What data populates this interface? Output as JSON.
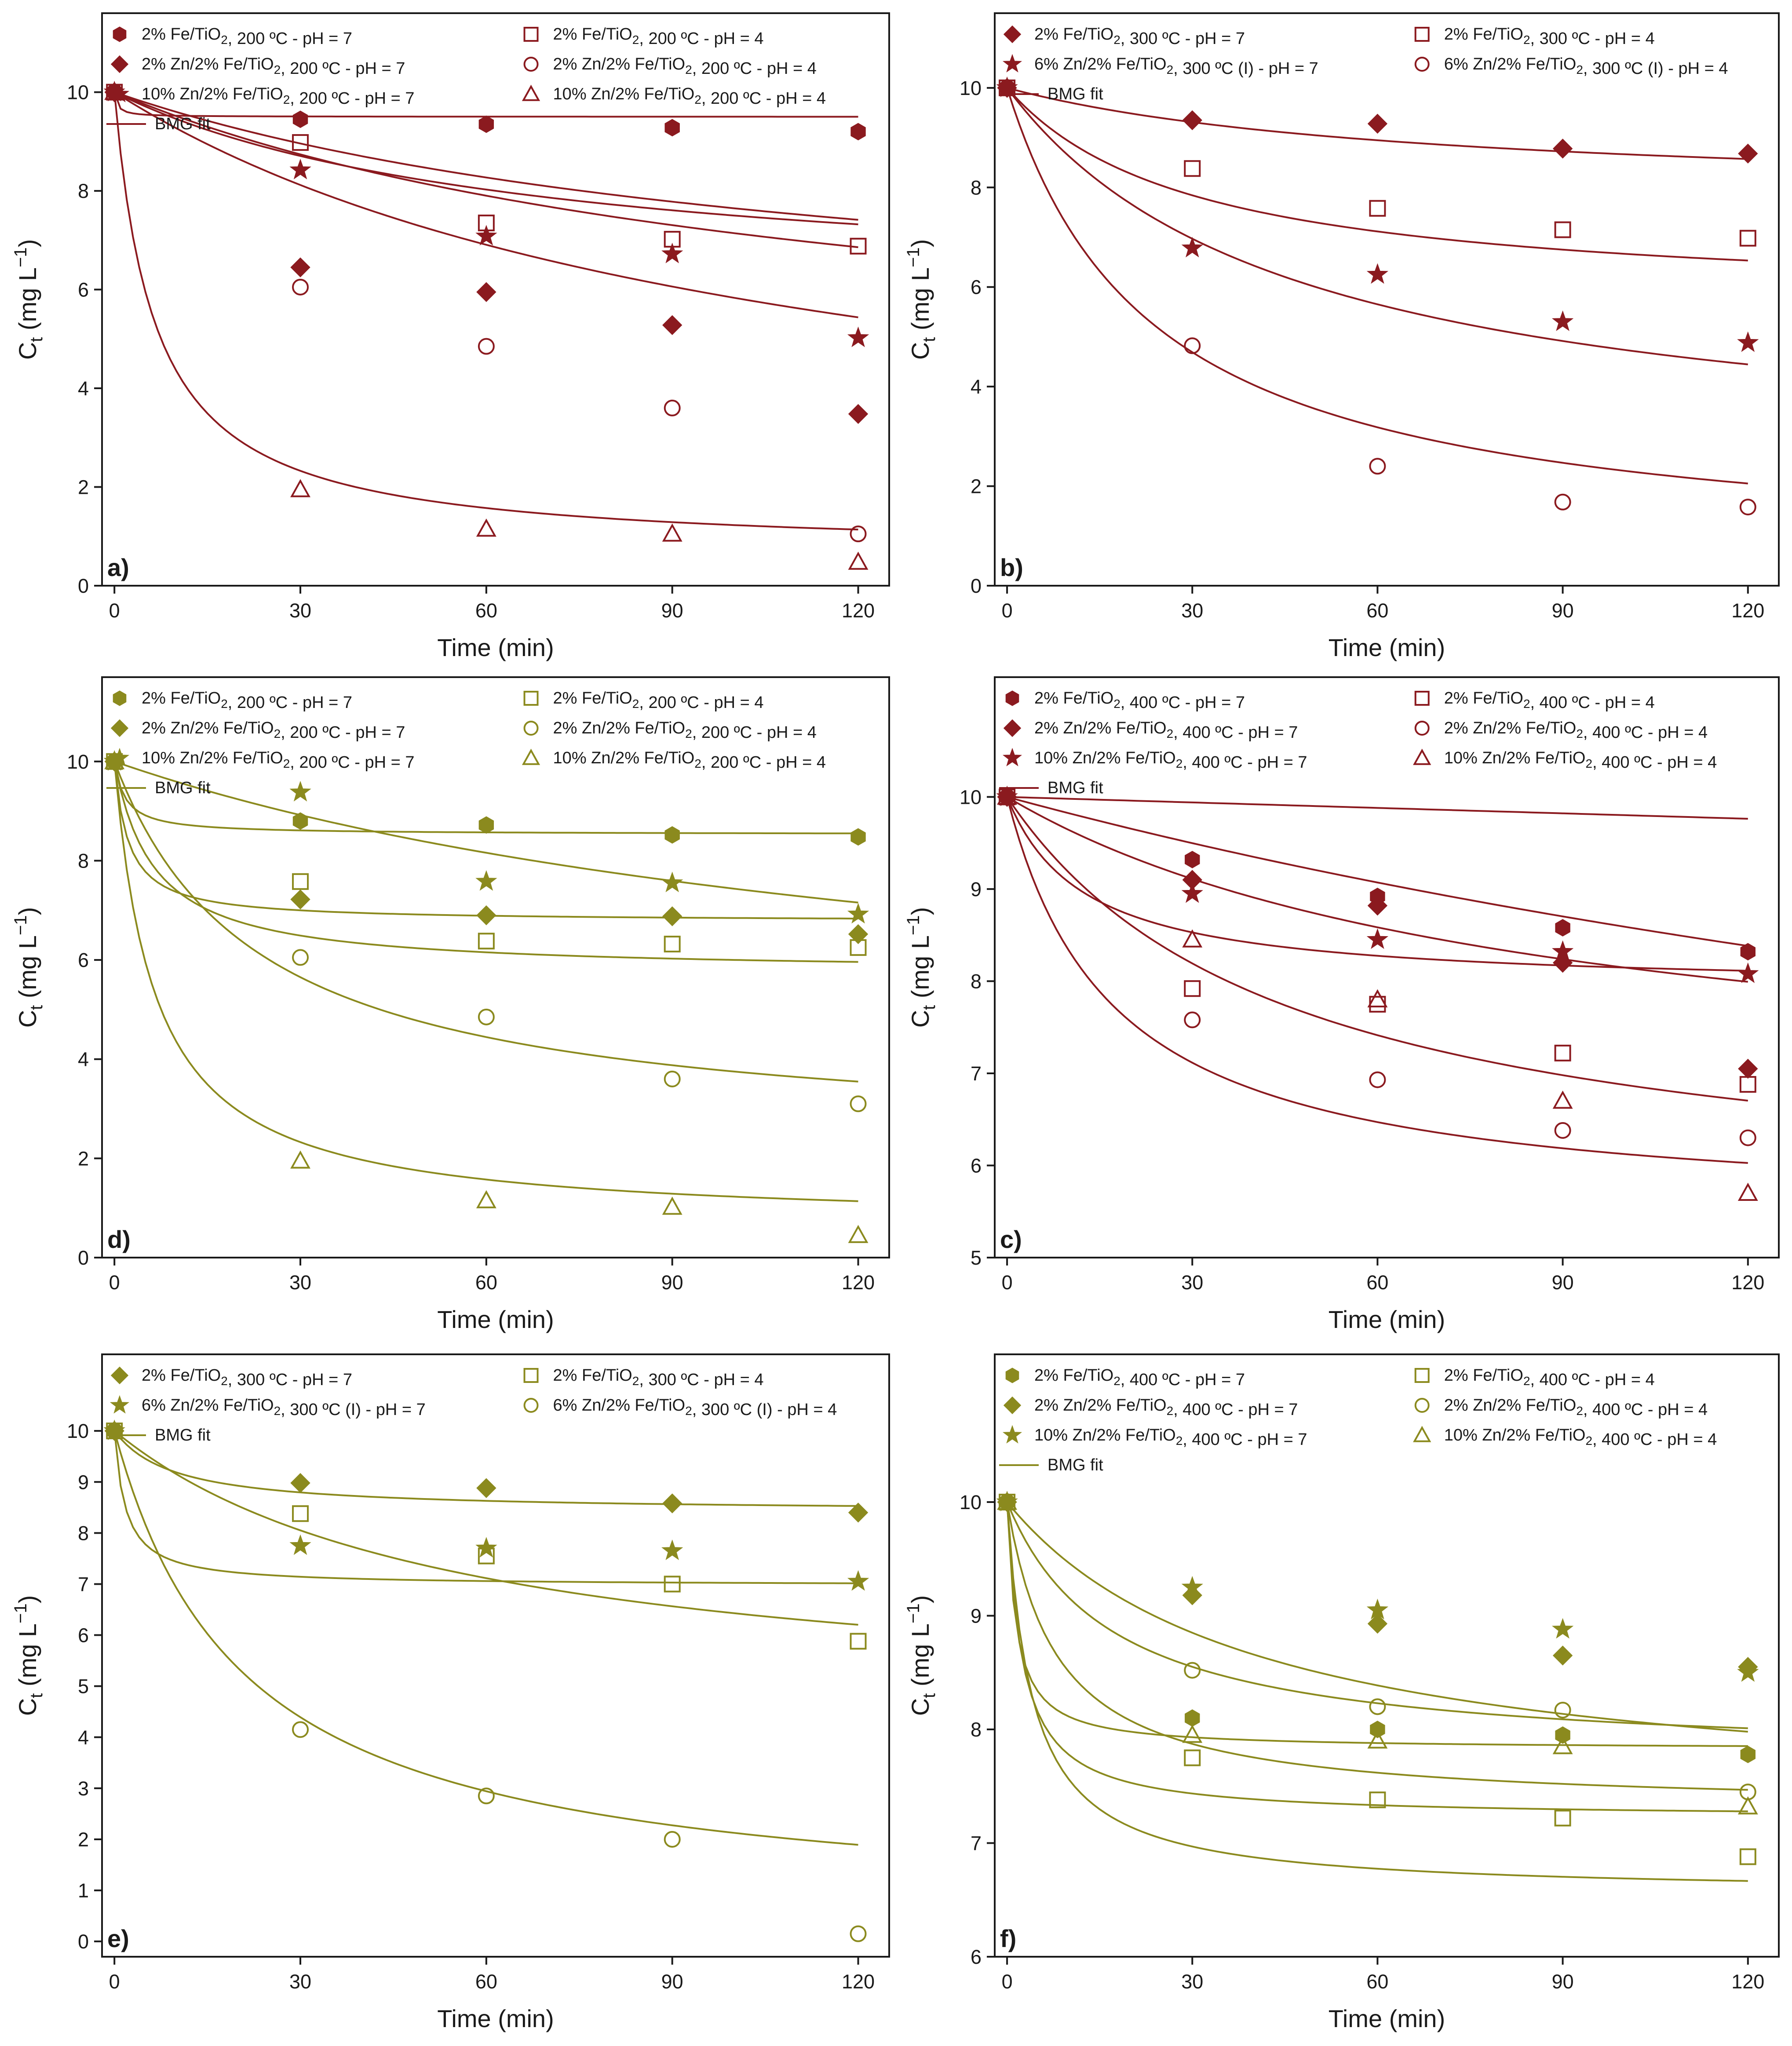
{
  "chart_data": [
    {
      "type": "scatter",
      "panel_label": "a)",
      "color": "#8b1a1f",
      "xlabel": "Time (min)",
      "ylabel": "Ct (mg L−1)",
      "xlim": [
        -2,
        125
      ],
      "ylim": [
        0,
        11.6
      ],
      "xticks": [
        0,
        30,
        60,
        90,
        120
      ],
      "yticks": [
        0,
        2,
        4,
        6,
        8,
        10
      ],
      "fit_label": "BMG fit",
      "series": [
        {
          "name": "2% Fe/TiO2, 200 ºC - pH = 7",
          "marker": "hexagon",
          "filled": true,
          "x": [
            0,
            30,
            60,
            90,
            120
          ],
          "y": [
            10,
            9.45,
            9.35,
            9.28,
            9.2
          ],
          "fit": [
            9.8,
            20
          ],
          "legend_pos": "left"
        },
        {
          "name": "2% Zn/2% Fe/TiO2, 200 ºC - pH = 7",
          "marker": "diamond",
          "filled": true,
          "x": [
            0,
            30,
            60,
            90,
            120
          ],
          "y": [
            10,
            6.45,
            5.95,
            5.28,
            3.48
          ],
          "fit": [
            190,
            1.6
          ],
          "legend_pos": "left"
        },
        {
          "name": "10% Zn/2% Fe/TiO2, 200 ºC - pH = 7",
          "marker": "star",
          "filled": true,
          "x": [
            0,
            30,
            60,
            90,
            120
          ],
          "y": [
            10,
            8.42,
            7.08,
            6.72,
            5.02
          ],
          "fit": [
            230,
            1.95
          ],
          "legend_pos": "left"
        },
        {
          "name": "2% Fe/TiO2, 200 ºC - pH = 4",
          "marker": "square",
          "filled": false,
          "x": [
            0,
            30,
            60,
            90,
            120
          ],
          "y": [
            10,
            8.98,
            7.35,
            7.02,
            6.88
          ],
          "fit": [
            160,
            2.4
          ],
          "legend_pos": "right"
        },
        {
          "name": "2% Zn/2% Fe/TiO2, 200 ºC - pH = 4",
          "marker": "circle",
          "filled": false,
          "x": [
            0,
            30,
            60,
            90,
            120
          ],
          "y": [
            10,
            6.05,
            4.85,
            3.6,
            1.05
          ],
          "fit": [
            125,
            1.15
          ],
          "legend_pos": "right"
        },
        {
          "name": "10% Zn/2% Fe/TiO2, 200 ºC - pH = 4",
          "marker": "triangle",
          "filled": false,
          "x": [
            0,
            30,
            60,
            90,
            120
          ],
          "y": [
            10,
            1.95,
            1.15,
            1.05,
            0.48
          ],
          "fit": [
            7,
            1.07
          ],
          "legend_pos": "right"
        }
      ]
    },
    {
      "type": "scatter",
      "panel_label": "b)",
      "color": "#8b1a1f",
      "xlabel": "Time (min)",
      "ylabel": "Ct (mg L−1)",
      "xlim": [
        -2,
        125
      ],
      "ylim": [
        0,
        11.5
      ],
      "xticks": [
        0,
        30,
        60,
        90,
        120
      ],
      "yticks": [
        0,
        2,
        4,
        6,
        8,
        10
      ],
      "fit_label": "BMG fit",
      "series": [
        {
          "name": "2% Fe/TiO2, 300 ºC - pH = 7",
          "marker": "diamond",
          "filled": true,
          "x": [
            0,
            30,
            60,
            90,
            120
          ],
          "y": [
            10,
            9.35,
            9.28,
            8.78,
            8.68
          ],
          "fit": [
            300,
            4.5
          ],
          "legend_pos": "left"
        },
        {
          "name": "6% Zn/2% Fe/TiO2, 300 ºC (I) - pH = 7",
          "marker": "star",
          "filled": true,
          "x": [
            0,
            30,
            60,
            90,
            120
          ],
          "y": [
            10,
            6.78,
            6.25,
            5.3,
            4.88
          ],
          "fit": [
            60,
            1.3
          ],
          "legend_pos": "left"
        },
        {
          "name": "2% Fe/TiO2, 300 ºC - pH = 4",
          "marker": "square",
          "filled": false,
          "x": [
            0,
            30,
            60,
            90,
            120
          ],
          "y": [
            10,
            8.38,
            7.58,
            7.15,
            6.98
          ],
          "fit": [
            70,
            2.3
          ],
          "legend_pos": "right"
        },
        {
          "name": "6% Zn/2% Fe/TiO2, 300 ºC (I) - pH = 4",
          "marker": "circle",
          "filled": false,
          "x": [
            0,
            30,
            60,
            90,
            120
          ],
          "y": [
            10,
            4.82,
            2.4,
            1.68,
            1.58
          ],
          "fit": [
            25,
            1.05
          ],
          "legend_pos": "right"
        }
      ]
    },
    {
      "type": "scatter",
      "panel_label": "d)",
      "color": "#8b8a1e",
      "xlabel": "Time (min)",
      "ylabel": "Ct (mg L−1)",
      "xlim": [
        -2,
        125
      ],
      "ylim": [
        0,
        11.7
      ],
      "xticks": [
        0,
        30,
        60,
        90,
        120
      ],
      "yticks": [
        0,
        2,
        4,
        6,
        8,
        10
      ],
      "fit_label": "BMG fit",
      "series": [
        {
          "name": "2% Fe/TiO2, 200 ºC - pH = 7",
          "marker": "hexagon",
          "filled": true,
          "x": [
            0,
            30,
            60,
            90,
            120
          ],
          "y": [
            10,
            8.8,
            8.72,
            8.52,
            8.48
          ],
          "fit": [
            12,
            6.8
          ],
          "legend_pos": "left"
        },
        {
          "name": "2% Zn/2% Fe/TiO2, 200 ºC - pH = 7",
          "marker": "diamond",
          "filled": true,
          "x": [
            0,
            30,
            60,
            90,
            120
          ],
          "y": [
            10,
            7.22,
            6.9,
            6.88,
            6.52
          ],
          "fit": [
            7,
            3.1
          ],
          "legend_pos": "left"
        },
        {
          "name": "10% Zn/2% Fe/TiO2, 200 ºC - pH = 7",
          "marker": "star",
          "filled": true,
          "x": [
            0,
            30,
            60,
            90,
            120
          ],
          "y": [
            10,
            9.38,
            7.58,
            7.55,
            6.92
          ],
          "fit": [
            230,
            1.6
          ],
          "legend_pos": "left"
        },
        {
          "name": "2% Fe/TiO2, 200 ºC - pH = 4",
          "marker": "square",
          "filled": false,
          "x": [
            0,
            30,
            60,
            90,
            120
          ],
          "y": [
            10,
            7.58,
            6.38,
            6.32,
            6.25
          ],
          "fit": [
            15,
            2.35
          ],
          "legend_pos": "right"
        },
        {
          "name": "2% Zn/2% Fe/TiO2, 200 ºC - pH = 4",
          "marker": "circle",
          "filled": false,
          "x": [
            0,
            30,
            60,
            90,
            120
          ],
          "y": [
            10,
            6.05,
            4.85,
            3.6,
            3.1
          ],
          "fit": [
            30,
            1.3
          ],
          "legend_pos": "right"
        },
        {
          "name": "10% Zn/2% Fe/TiO2, 200 ºC - pH = 4",
          "marker": "triangle",
          "filled": false,
          "x": [
            0,
            30,
            60,
            90,
            120
          ],
          "y": [
            10,
            1.95,
            1.15,
            1.02,
            0.45
          ],
          "fit": [
            7,
            1.07
          ],
          "legend_pos": "right"
        }
      ]
    },
    {
      "type": "scatter",
      "panel_label": "c)",
      "color": "#8b1a1f",
      "xlabel": "Time (min)",
      "ylabel": "Ct (mg L−1)",
      "xlim": [
        -2,
        125
      ],
      "ylim": [
        5,
        11.3
      ],
      "xticks": [
        0,
        30,
        60,
        90,
        120
      ],
      "yticks": [
        5,
        6,
        7,
        8,
        9,
        10
      ],
      "fit_label": "BMG fit",
      "series": [
        {
          "name": "2% Fe/TiO2, 400 ºC - pH = 7",
          "marker": "hexagon",
          "filled": true,
          "x": [
            0,
            30,
            60,
            90,
            120
          ],
          "y": [
            10,
            9.32,
            8.92,
            8.58,
            8.32
          ],
          "fit": [
            250,
            2.9
          ],
          "legend_pos": "left"
        },
        {
          "name": "2% Zn/2% Fe/TiO2, 400 ºC - pH = 7",
          "marker": "diamond",
          "filled": true,
          "x": [
            0,
            30,
            60,
            90,
            120
          ],
          "y": [
            10,
            9.1,
            8.82,
            8.2,
            7.05
          ],
          "fit": [
            550,
            1.6
          ],
          "legend_pos": "left"
        },
        {
          "name": "10% Zn/2% Fe/TiO2, 400 ºC - pH = 7",
          "marker": "star",
          "filled": true,
          "x": [
            0,
            30,
            60,
            90,
            120
          ],
          "y": [
            10,
            8.95,
            8.45,
            8.32,
            8.08
          ],
          "fit": [
            60,
            4.8
          ],
          "legend_pos": "left"
        },
        {
          "name": "2% Fe/TiO2, 400 ºC - pH = 4",
          "marker": "square",
          "filled": false,
          "x": [
            0,
            30,
            60,
            90,
            120
          ],
          "y": [
            10,
            7.92,
            7.75,
            7.22,
            6.88
          ],
          "fit": [
            100,
            2.2
          ],
          "legend_pos": "right"
        },
        {
          "name": "2% Zn/2% Fe/TiO2, 400 ºC - pH = 4",
          "marker": "circle",
          "filled": false,
          "x": [
            0,
            30,
            60,
            90,
            120
          ],
          "y": [
            10,
            7.58,
            6.93,
            6.38,
            6.3
          ],
          "fit": [
            38,
            2.2
          ],
          "legend_pos": "right"
        },
        {
          "name": "10% Zn/2% Fe/TiO2, 400 ºC - pH = 4",
          "marker": "triangle",
          "filled": false,
          "x": [
            0,
            30,
            60,
            90,
            120
          ],
          "y": [
            10,
            8.45,
            7.8,
            6.7,
            5.7
          ],
          "fit": [
            5000,
            0.55
          ],
          "legend_pos": "right"
        }
      ]
    },
    {
      "type": "scatter",
      "panel_label": "e)",
      "color": "#8b8a1e",
      "xlabel": "Time (min)",
      "ylabel": "Ct (mg L−1)",
      "xlim": [
        -2,
        125
      ],
      "ylim": [
        -0.3,
        11.5
      ],
      "xticks": [
        0,
        30,
        60,
        90,
        120
      ],
      "yticks": [
        0,
        1,
        2,
        3,
        4,
        5,
        6,
        7,
        8,
        9,
        10
      ],
      "fit_label": "BMG fit",
      "series": [
        {
          "name": "2% Fe/TiO2, 300 ºC - pH = 7",
          "marker": "diamond",
          "filled": true,
          "x": [
            0,
            30,
            60,
            90,
            120
          ],
          "y": [
            10,
            8.98,
            8.88,
            8.58,
            8.4
          ],
          "fit": [
            60,
            6.3
          ],
          "legend_pos": "left"
        },
        {
          "name": "6% Zn/2% Fe/TiO2, 300 ºC (I) - pH = 7",
          "marker": "star",
          "filled": true,
          "x": [
            0,
            30,
            60,
            90,
            120
          ],
          "y": [
            10,
            7.75,
            7.7,
            7.65,
            7.05
          ],
          "fit": [
            6,
            3.3
          ],
          "legend_pos": "left"
        },
        {
          "name": "2% Fe/TiO2, 300 ºC - pH = 4",
          "marker": "square",
          "filled": false,
          "x": [
            0,
            30,
            60,
            90,
            120
          ],
          "y": [
            10,
            8.38,
            7.55,
            7.0,
            5.88
          ],
          "fit": [
            100,
            1.8
          ],
          "legend_pos": "right"
        },
        {
          "name": "6% Zn/2% Fe/TiO2, 300 ºC (I) - pH = 4",
          "marker": "circle",
          "filled": false,
          "x": [
            0,
            30,
            60,
            90,
            120
          ],
          "y": [
            10,
            4.15,
            2.85,
            2.0,
            0.15
          ],
          "fit": [
            22,
            1.05
          ],
          "legend_pos": "right"
        }
      ]
    },
    {
      "type": "scatter",
      "panel_label": "f)",
      "color": "#8b8a1e",
      "xlabel": "Time (min)",
      "ylabel": "Ct (mg L−1)",
      "xlim": [
        -2,
        125
      ],
      "ylim": [
        6,
        11.3
      ],
      "xticks": [
        0,
        30,
        60,
        90,
        120
      ],
      "yticks": [
        6,
        7,
        8,
        9,
        10
      ],
      "fit_label": "BMG fit",
      "series": [
        {
          "name": "2% Fe/TiO2, 400 ºC - pH = 7",
          "marker": "hexagon",
          "filled": true,
          "x": [
            0,
            30,
            60,
            90,
            120
          ],
          "y": [
            10,
            8.1,
            8.0,
            7.95,
            7.78
          ],
          "fit": [
            7,
            4.6
          ],
          "legend_pos": "left"
        },
        {
          "name": "2% Zn/2% Fe/TiO2, 400 ºC - pH = 7",
          "marker": "diamond",
          "filled": true,
          "x": [
            0,
            30,
            60,
            90,
            120
          ],
          "y": [
            10,
            9.18,
            8.93,
            8.65,
            8.55
          ],
          "fit": [
            75,
            4.4
          ],
          "legend_pos": "left"
        },
        {
          "name": "10% Zn/2% Fe/TiO2, 400 ºC - pH = 7",
          "marker": "star",
          "filled": true,
          "x": [
            0,
            30,
            60,
            90,
            120
          ],
          "y": [
            10,
            9.25,
            9.05,
            8.88,
            8.5
          ],
          "fit": [
            150,
            3.7
          ],
          "legend_pos": "left"
        },
        {
          "name": "2% Fe/TiO2, 400 ºC - pH = 4",
          "marker": "square",
          "filled": false,
          "x": [
            0,
            30,
            60,
            90,
            120
          ],
          "y": [
            10,
            7.75,
            7.38,
            7.22,
            6.88
          ],
          "fit": [
            12,
            2.9
          ],
          "legend_pos": "right"
        },
        {
          "name": "2% Zn/2% Fe/TiO2, 400 ºC - pH = 4",
          "marker": "circle",
          "filled": false,
          "x": [
            0,
            30,
            60,
            90,
            120
          ],
          "y": [
            10,
            8.52,
            8.2,
            8.17,
            7.45
          ],
          "fit": [
            30,
            3.7
          ],
          "legend_pos": "right"
        },
        {
          "name": "10% Zn/2% Fe/TiO2, 400 ºC - pH = 4",
          "marker": "triangle",
          "filled": false,
          "x": [
            0,
            30,
            60,
            90,
            120
          ],
          "y": [
            10,
            7.95,
            7.9,
            7.85,
            7.32
          ],
          "fit": [
            9,
            3.6
          ],
          "legend_pos": "right"
        }
      ]
    }
  ]
}
